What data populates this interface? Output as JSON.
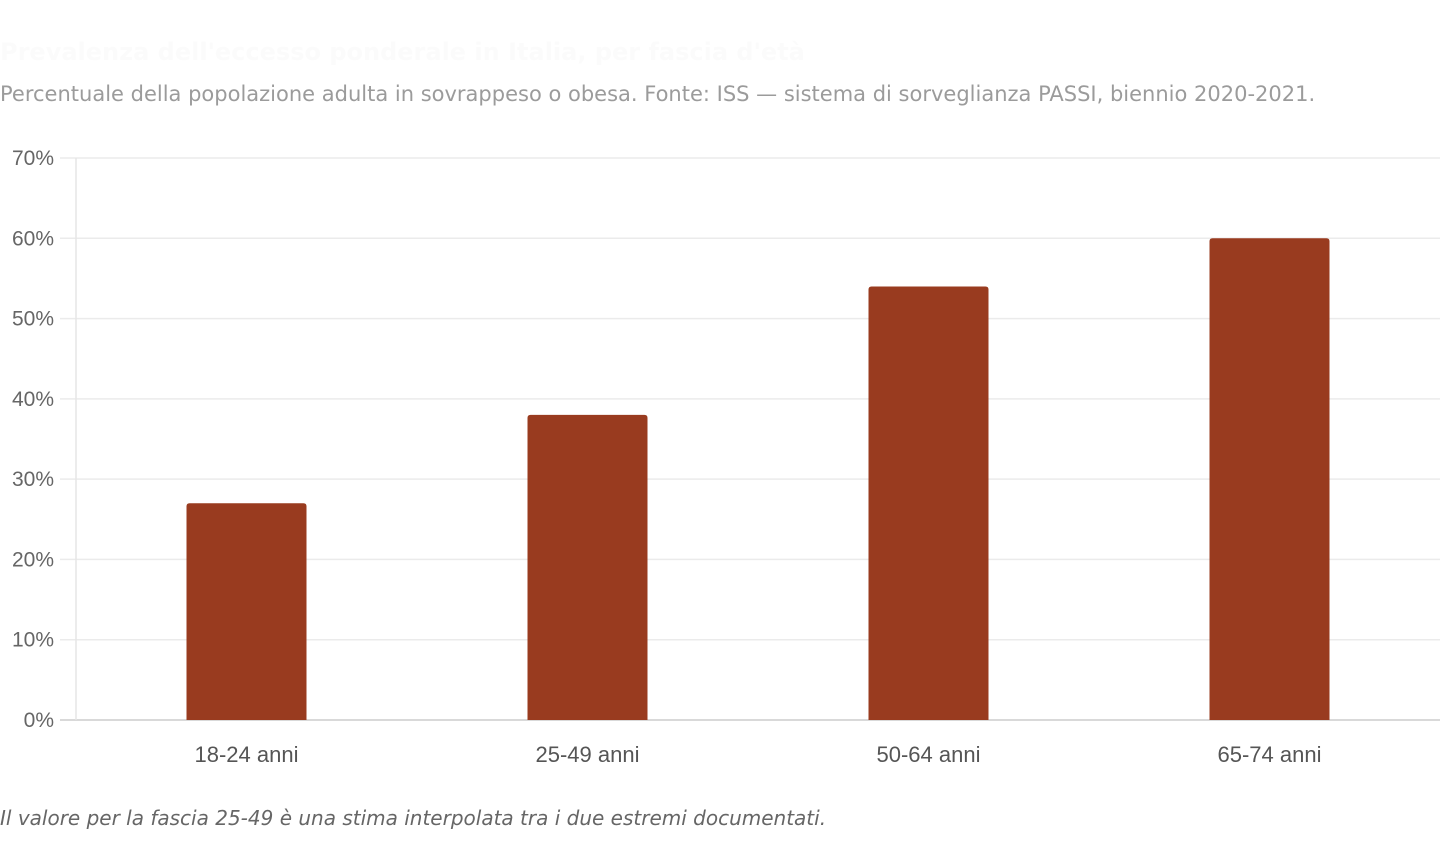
{
  "header": {
    "title": "Prevalenza dell'eccesso ponderale in Italia, per fascia d'età",
    "subtitle": "Percentuale della popolazione adulta in sovrappeso o obesa. Fonte: ISS — sistema di sorveglianza PASSI, biennio 2020-2021."
  },
  "chart_data": {
    "type": "bar",
    "title": "Prevalenza dell'eccesso ponderale in Italia, per fascia d'età",
    "subtitle": "Percentuale della popolazione adulta in sovrappeso o obesa. Fonte: ISS — sistema di sorveglianza PASSI, biennio 2020-2021.",
    "categories": [
      "18-24 anni",
      "25-49 anni",
      "50-64 anni",
      "65-74 anni"
    ],
    "values": [
      27,
      38,
      54,
      60
    ],
    "y_ticks": [
      "0%",
      "10%",
      "20%",
      "30%",
      "40%",
      "50%",
      "60%",
      "70%"
    ],
    "xlabel": "",
    "ylabel": "",
    "ylim": [
      0,
      70
    ],
    "grid": true,
    "legend": "none",
    "bar_color": "#993b1f"
  },
  "note": "Il valore per la fascia 25-49 è una stima interpolata tra i due estremi documentati."
}
